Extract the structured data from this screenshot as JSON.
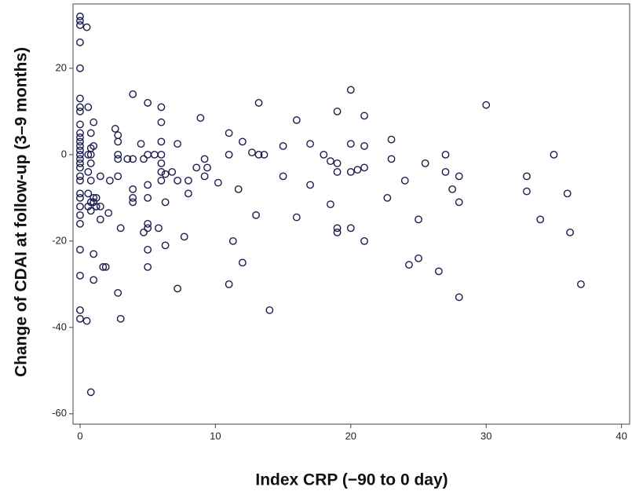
{
  "chart_data": {
    "type": "scatter",
    "x_label": "Index CRP  (−90 to 0 day)",
    "y_label": "Change of CDAI at follow-up (3–9 months)",
    "color": "#1c1c50",
    "xlim": [
      -0.52,
      40.6
    ],
    "ylim": [
      -62.4,
      34.9
    ],
    "xticks": [
      0,
      10,
      20,
      30,
      40
    ],
    "yticks": [
      20,
      0,
      -20,
      -40,
      -60
    ],
    "x": [
      0,
      0,
      0,
      0,
      0,
      0,
      0,
      0,
      0,
      0,
      0,
      0,
      0,
      0,
      0,
      0,
      0,
      0,
      0,
      0,
      0,
      0,
      0,
      0,
      0,
      0,
      0,
      0,
      0,
      0.5,
      0.5,
      0.6,
      0.6,
      0.6,
      0.6,
      0.6,
      0.8,
      0.8,
      0.8,
      0.8,
      0.8,
      0.8,
      0.8,
      0.8,
      1,
      1,
      1,
      1,
      1,
      1,
      1.2,
      1.2,
      1.5,
      1.5,
      1.5,
      1.7,
      1.9,
      2.2,
      2.1,
      2.6,
      2.8,
      2.8,
      2.8,
      2.8,
      2.8,
      2.8,
      3,
      3,
      3.5,
      3.9,
      3.9,
      3.9,
      3.9,
      3.9,
      4.5,
      4.7,
      4.7,
      5,
      5,
      5,
      5,
      5,
      5,
      5,
      5,
      5.5,
      5.8,
      6,
      6,
      6,
      6,
      6,
      6,
      6,
      6.3,
      6.3,
      6.3,
      6.8,
      7.2,
      7.2,
      7.2,
      7.7,
      8,
      8,
      8.6,
      8.9,
      9.2,
      9.2,
      9.4,
      10.2,
      11,
      11,
      11,
      11.3,
      11.7,
      12,
      12,
      12.7,
      13,
      13.2,
      13.2,
      13.6,
      14,
      15,
      15,
      16,
      16,
      17,
      17,
      18,
      18.5,
      18.5,
      19,
      19,
      19,
      19,
      19,
      20,
      20,
      20,
      20,
      20.5,
      21,
      21,
      21,
      21,
      22.7,
      23,
      23,
      24,
      24.3,
      25,
      25,
      25.5,
      26.5,
      27,
      27,
      27.5,
      28,
      28,
      28,
      30,
      33,
      33,
      34,
      35,
      36,
      36.2,
      37
    ],
    "values": [
      32,
      31,
      30,
      26,
      20,
      13,
      11,
      10,
      7,
      5,
      4,
      3,
      2,
      1,
      0,
      -1,
      -2,
      -3,
      -5,
      -6,
      -9,
      -10,
      -12,
      -14,
      -16,
      -22,
      -28,
      -36,
      -38,
      29.5,
      -38.5,
      11,
      0,
      -4,
      -9,
      -12,
      -55,
      5,
      1.5,
      0,
      -2,
      -6,
      -11,
      -13,
      7.5,
      2,
      -10,
      -11,
      -23,
      -29,
      -10,
      -12,
      -12,
      -15,
      -5,
      -26,
      -26,
      -6,
      -13.5,
      6,
      4.5,
      3,
      0,
      -1,
      -5,
      -32,
      -17,
      -38,
      -1,
      -8,
      -10,
      -11,
      14,
      -1,
      2.5,
      -1,
      -18,
      12,
      0,
      -7,
      -10,
      -16,
      -17,
      -22,
      -26,
      0,
      -17,
      11,
      7.5,
      3,
      0,
      -2,
      -4,
      -6,
      -4.5,
      -21,
      -11,
      -4,
      2.5,
      -6,
      -31,
      -19,
      -6,
      -9,
      -3,
      8.5,
      -5,
      -1,
      -3,
      -6.5,
      5,
      0,
      -30,
      -20,
      -8,
      3,
      -25,
      0.5,
      -14,
      12,
      0,
      0,
      -36,
      2,
      -5,
      8,
      -14.5,
      2.5,
      -7,
      0,
      -11.5,
      -1.5,
      10,
      -2,
      -4,
      -17,
      -18,
      15,
      2.5,
      -4,
      -17,
      -3.5,
      9,
      2,
      -3,
      -20,
      -10,
      3.5,
      -1,
      -6,
      -25.5,
      -15,
      -24,
      -2,
      -27,
      0,
      -4,
      -8,
      -5,
      -11,
      -33,
      11.5,
      -5,
      -8.5,
      -15,
      0,
      -9,
      -18,
      -30
    ]
  }
}
